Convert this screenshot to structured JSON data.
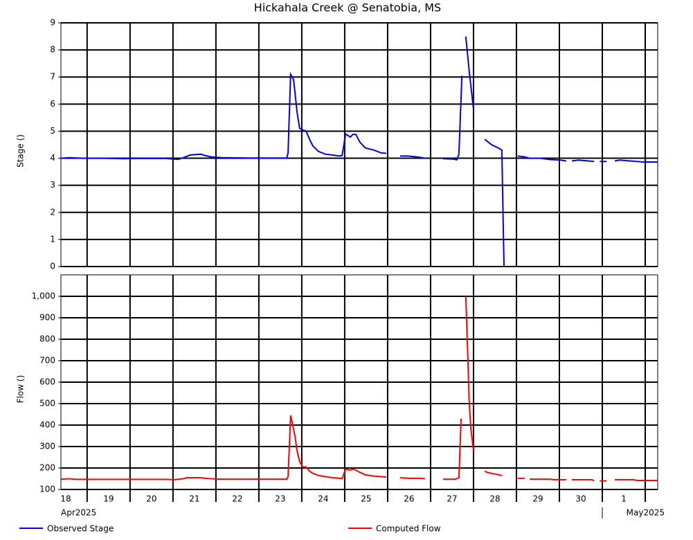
{
  "chart_data": [
    {
      "type": "line",
      "title": "Hickahala Creek @ Senatobia, MS",
      "y_label": "Stage ()",
      "ylim": [
        0,
        9
      ],
      "yticks": [
        0,
        1,
        2,
        3,
        4,
        5,
        6,
        7,
        8,
        9
      ],
      "grid": true,
      "x": [
        18.39,
        18.58,
        18.9,
        19.39,
        19.87,
        20.19,
        20.84,
        21.0,
        21.13,
        21.24,
        21.4,
        21.65,
        21.74,
        21.89,
        22.13,
        22.77,
        23.65,
        23.68,
        23.74,
        23.81,
        23.85,
        23.89,
        23.95,
        24.02,
        24.1,
        24.18,
        24.26,
        24.39,
        24.55,
        24.71,
        24.87,
        24.94,
        25.02,
        25.13,
        25.19,
        25.26,
        25.35,
        25.48,
        25.68,
        25.84,
        25.97,
        null,
        26.29,
        26.48,
        26.73,
        26.87,
        null,
        27.29,
        27.53,
        27.61,
        27.66,
        27.73,
        null,
        27.82,
        27.9,
        28.0,
        null,
        28.26,
        28.42,
        28.58,
        28.66,
        28.71,
        null,
        29.03,
        29.19,
        29.31,
        29.55,
        29.79,
        30.03,
        30.16,
        null,
        30.29,
        30.44,
        30.68,
        30.81,
        null,
        30.94,
        31.1,
        null,
        31.29,
        31.4,
        31.65,
        31.81,
        31.97,
        32.13,
        32.29
      ],
      "series": [
        {
          "name": "Observed Stage",
          "color": "#0000e0",
          "values": [
            4.0,
            4.02,
            4.0,
            4.0,
            3.98,
            3.99,
            3.99,
            3.97,
            3.96,
            4.02,
            4.12,
            4.15,
            4.1,
            4.05,
            4.02,
            4.01,
            4.01,
            4.2,
            7.1,
            6.9,
            6.3,
            5.7,
            5.1,
            5.05,
            5.0,
            4.7,
            4.45,
            4.25,
            4.15,
            4.12,
            4.08,
            4.1,
            4.9,
            4.78,
            4.88,
            4.88,
            4.6,
            4.38,
            4.3,
            4.2,
            4.18,
            null,
            4.08,
            4.08,
            4.04,
            4.0,
            null,
            3.98,
            3.97,
            3.94,
            4.15,
            7.05,
            null,
            8.5,
            7.2,
            5.8,
            null,
            4.7,
            4.5,
            4.38,
            4.3,
            0.0,
            null,
            4.08,
            4.05,
            4.0,
            4.0,
            3.95,
            3.93,
            3.9,
            null,
            3.9,
            3.93,
            3.9,
            3.88,
            null,
            3.88,
            3.88,
            null,
            3.9,
            3.93,
            3.9,
            3.88,
            3.86,
            3.86,
            3.86
          ]
        }
      ]
    },
    {
      "type": "line",
      "y_label": "Flow ()",
      "ylim": [
        100,
        1100
      ],
      "yticks": [
        100,
        200,
        300,
        400,
        500,
        600,
        700,
        800,
        900,
        {
          "value": 1000,
          "label": "1,000"
        }
      ],
      "grid": true,
      "xlim": [
        18.39,
        32.29
      ],
      "xgrid": [
        19,
        20,
        21,
        22,
        23,
        24,
        25,
        26,
        27,
        28,
        29,
        30,
        31,
        32
      ],
      "day_labels": [
        "18",
        "19",
        "20",
        "21",
        "22",
        "23",
        "24",
        "25",
        "26",
        "27",
        "28",
        "29",
        "30",
        "1"
      ],
      "month_labels": [
        "Apr2025",
        "May2025"
      ],
      "x": [
        18.39,
        18.58,
        18.74,
        20.84,
        21.03,
        21.13,
        21.24,
        21.32,
        21.65,
        21.74,
        21.89,
        22.13,
        23.65,
        23.68,
        23.74,
        23.84,
        23.89,
        23.95,
        24.02,
        24.1,
        24.18,
        24.26,
        24.39,
        24.71,
        24.87,
        24.94,
        25.02,
        25.13,
        25.19,
        25.26,
        25.35,
        25.48,
        25.68,
        25.97,
        null,
        26.29,
        26.48,
        26.73,
        26.87,
        null,
        27.29,
        27.58,
        27.66,
        27.71,
        null,
        27.82,
        27.87,
        27.9,
        27.94,
        28.0,
        null,
        28.26,
        28.34,
        28.5,
        28.66,
        null,
        29.03,
        29.19,
        null,
        29.31,
        29.79,
        29.87,
        30.16,
        null,
        30.29,
        30.76,
        30.81,
        null,
        30.94,
        31.1,
        null,
        31.29,
        31.73,
        31.81,
        32.29
      ],
      "series": [
        {
          "name": "Computed Flow",
          "color": "#ff0000",
          "values": [
            148,
            150,
            147,
            147,
            145,
            148,
            150,
            155,
            155,
            152,
            150,
            148,
            148,
            160,
            445,
            350,
            280,
            230,
            205,
            205,
            185,
            175,
            165,
            155,
            153,
            150,
            195,
            190,
            195,
            190,
            180,
            168,
            162,
            158,
            null,
            155,
            152,
            152,
            150,
            null,
            148,
            148,
            155,
            430,
            null,
            1000,
            700,
            500,
            380,
            280,
            null,
            185,
            178,
            172,
            165,
            null,
            152,
            152,
            null,
            148,
            148,
            145,
            145,
            null,
            145,
            145,
            140,
            null,
            140,
            140,
            null,
            145,
            145,
            142,
            142
          ]
        }
      ]
    }
  ]
}
